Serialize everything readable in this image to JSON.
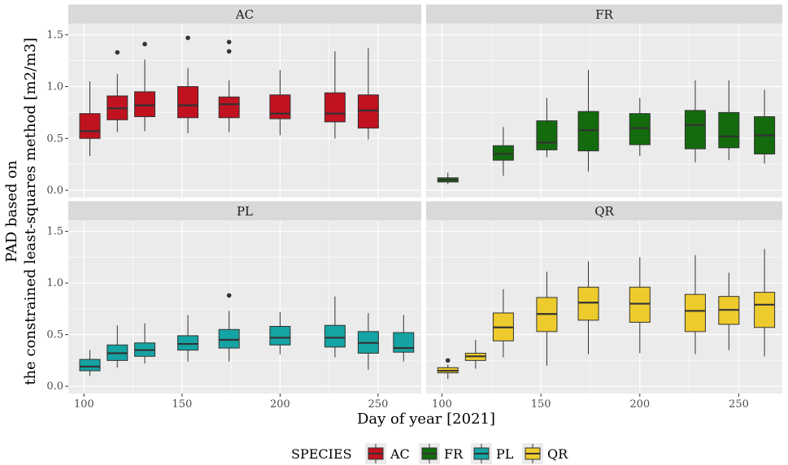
{
  "chart_data": {
    "type": "boxplot",
    "facet_layout": "2x2",
    "xlabel": "Day of year [2021]",
    "ylabel_line1": "PAD based on",
    "ylabel_line2": "the constrained least-squares method [m2/m3]",
    "xlim": [
      92,
      272
    ],
    "ylim": [
      -0.07,
      1.6
    ],
    "x_ticks": [
      100,
      150,
      200,
      250
    ],
    "y_ticks": [
      0.0,
      0.5,
      1.0,
      1.5
    ],
    "y_tick_labels": [
      "0.0",
      "0.5",
      "1.0",
      "1.5"
    ],
    "grid": true,
    "legend": {
      "title": "SPECIES",
      "position": "bottom",
      "entries": [
        "AC",
        "FR",
        "PL",
        "QR"
      ]
    },
    "colors": {
      "AC": "#c0121f",
      "FR": "#136b0d",
      "PL": "#16a3a3",
      "QR": "#eecb2d",
      "panel_bg": "#ebebeb",
      "strip_bg": "#d9d9d9",
      "grid": "#ffffff"
    },
    "panels": [
      {
        "species": "AC",
        "boxes": [
          {
            "x": 103,
            "min": 0.33,
            "q1": 0.5,
            "median": 0.57,
            "q3": 0.74,
            "max": 1.05,
            "outliers": []
          },
          {
            "x": 117,
            "min": 0.56,
            "q1": 0.68,
            "median": 0.79,
            "q3": 0.91,
            "max": 1.12,
            "outliers": [
              1.33
            ]
          },
          {
            "x": 131,
            "min": 0.57,
            "q1": 0.71,
            "median": 0.82,
            "q3": 0.95,
            "max": 1.26,
            "outliers": [
              1.41
            ]
          },
          {
            "x": 153,
            "min": 0.55,
            "q1": 0.7,
            "median": 0.82,
            "q3": 1.0,
            "max": 1.18,
            "outliers": [
              1.47
            ]
          },
          {
            "x": 174,
            "min": 0.56,
            "q1": 0.7,
            "median": 0.83,
            "q3": 0.9,
            "max": 1.06,
            "outliers": [
              1.34,
              1.43
            ]
          },
          {
            "x": 200,
            "min": 0.53,
            "q1": 0.69,
            "median": 0.74,
            "q3": 0.92,
            "max": 1.16,
            "outliers": []
          },
          {
            "x": 228,
            "min": 0.5,
            "q1": 0.66,
            "median": 0.74,
            "q3": 0.94,
            "max": 1.34,
            "outliers": []
          },
          {
            "x": 245,
            "min": 0.49,
            "q1": 0.6,
            "median": 0.77,
            "q3": 0.92,
            "max": 1.37,
            "outliers": []
          }
        ]
      },
      {
        "species": "FR",
        "boxes": [
          {
            "x": 103,
            "min": 0.06,
            "q1": 0.08,
            "median": 0.1,
            "q3": 0.12,
            "max": 0.17,
            "outliers": []
          },
          {
            "x": 131,
            "min": 0.14,
            "q1": 0.29,
            "median": 0.35,
            "q3": 0.43,
            "max": 0.61,
            "outliers": []
          },
          {
            "x": 153,
            "min": 0.32,
            "q1": 0.39,
            "median": 0.46,
            "q3": 0.67,
            "max": 0.89,
            "outliers": []
          },
          {
            "x": 174,
            "min": 0.18,
            "q1": 0.38,
            "median": 0.58,
            "q3": 0.76,
            "max": 1.16,
            "outliers": []
          },
          {
            "x": 200,
            "min": 0.33,
            "q1": 0.44,
            "median": 0.6,
            "q3": 0.74,
            "max": 0.89,
            "outliers": []
          },
          {
            "x": 228,
            "min": 0.27,
            "q1": 0.4,
            "median": 0.63,
            "q3": 0.77,
            "max": 1.06,
            "outliers": []
          },
          {
            "x": 245,
            "min": 0.29,
            "q1": 0.41,
            "median": 0.52,
            "q3": 0.75,
            "max": 1.06,
            "outliers": []
          },
          {
            "x": 263,
            "min": 0.26,
            "q1": 0.35,
            "median": 0.53,
            "q3": 0.71,
            "max": 0.97,
            "outliers": []
          }
        ]
      },
      {
        "species": "PL",
        "boxes": [
          {
            "x": 103,
            "min": 0.1,
            "q1": 0.15,
            "median": 0.19,
            "q3": 0.26,
            "max": 0.35,
            "outliers": []
          },
          {
            "x": 117,
            "min": 0.18,
            "q1": 0.25,
            "median": 0.32,
            "q3": 0.4,
            "max": 0.59,
            "outliers": []
          },
          {
            "x": 131,
            "min": 0.22,
            "q1": 0.29,
            "median": 0.35,
            "q3": 0.42,
            "max": 0.61,
            "outliers": []
          },
          {
            "x": 153,
            "min": 0.24,
            "q1": 0.35,
            "median": 0.41,
            "q3": 0.49,
            "max": 0.69,
            "outliers": []
          },
          {
            "x": 174,
            "min": 0.24,
            "q1": 0.37,
            "median": 0.45,
            "q3": 0.55,
            "max": 0.73,
            "outliers": [
              0.88
            ]
          },
          {
            "x": 200,
            "min": 0.31,
            "q1": 0.4,
            "median": 0.47,
            "q3": 0.58,
            "max": 0.72,
            "outliers": []
          },
          {
            "x": 228,
            "min": 0.28,
            "q1": 0.38,
            "median": 0.47,
            "q3": 0.59,
            "max": 0.87,
            "outliers": []
          },
          {
            "x": 245,
            "min": 0.16,
            "q1": 0.32,
            "median": 0.42,
            "q3": 0.53,
            "max": 0.71,
            "outliers": []
          },
          {
            "x": 263,
            "min": 0.24,
            "q1": 0.33,
            "median": 0.37,
            "q3": 0.52,
            "max": 0.69,
            "outliers": []
          }
        ]
      },
      {
        "species": "QR",
        "boxes": [
          {
            "x": 103,
            "min": 0.07,
            "q1": 0.13,
            "median": 0.15,
            "q3": 0.18,
            "max": 0.21,
            "outliers": [
              0.25
            ]
          },
          {
            "x": 117,
            "min": 0.17,
            "q1": 0.25,
            "median": 0.29,
            "q3": 0.32,
            "max": 0.45,
            "outliers": []
          },
          {
            "x": 131,
            "min": 0.28,
            "q1": 0.44,
            "median": 0.57,
            "q3": 0.71,
            "max": 0.94,
            "outliers": []
          },
          {
            "x": 153,
            "min": 0.2,
            "q1": 0.53,
            "median": 0.7,
            "q3": 0.86,
            "max": 1.11,
            "outliers": []
          },
          {
            "x": 174,
            "min": 0.31,
            "q1": 0.64,
            "median": 0.81,
            "q3": 0.96,
            "max": 1.21,
            "outliers": []
          },
          {
            "x": 200,
            "min": 0.32,
            "q1": 0.62,
            "median": 0.8,
            "q3": 0.96,
            "max": 1.25,
            "outliers": []
          },
          {
            "x": 228,
            "min": 0.31,
            "q1": 0.53,
            "median": 0.73,
            "q3": 0.89,
            "max": 1.27,
            "outliers": []
          },
          {
            "x": 245,
            "min": 0.35,
            "q1": 0.6,
            "median": 0.74,
            "q3": 0.87,
            "max": 1.1,
            "outliers": []
          },
          {
            "x": 263,
            "min": 0.29,
            "q1": 0.57,
            "median": 0.79,
            "q3": 0.91,
            "max": 1.33,
            "outliers": []
          }
        ]
      }
    ]
  }
}
